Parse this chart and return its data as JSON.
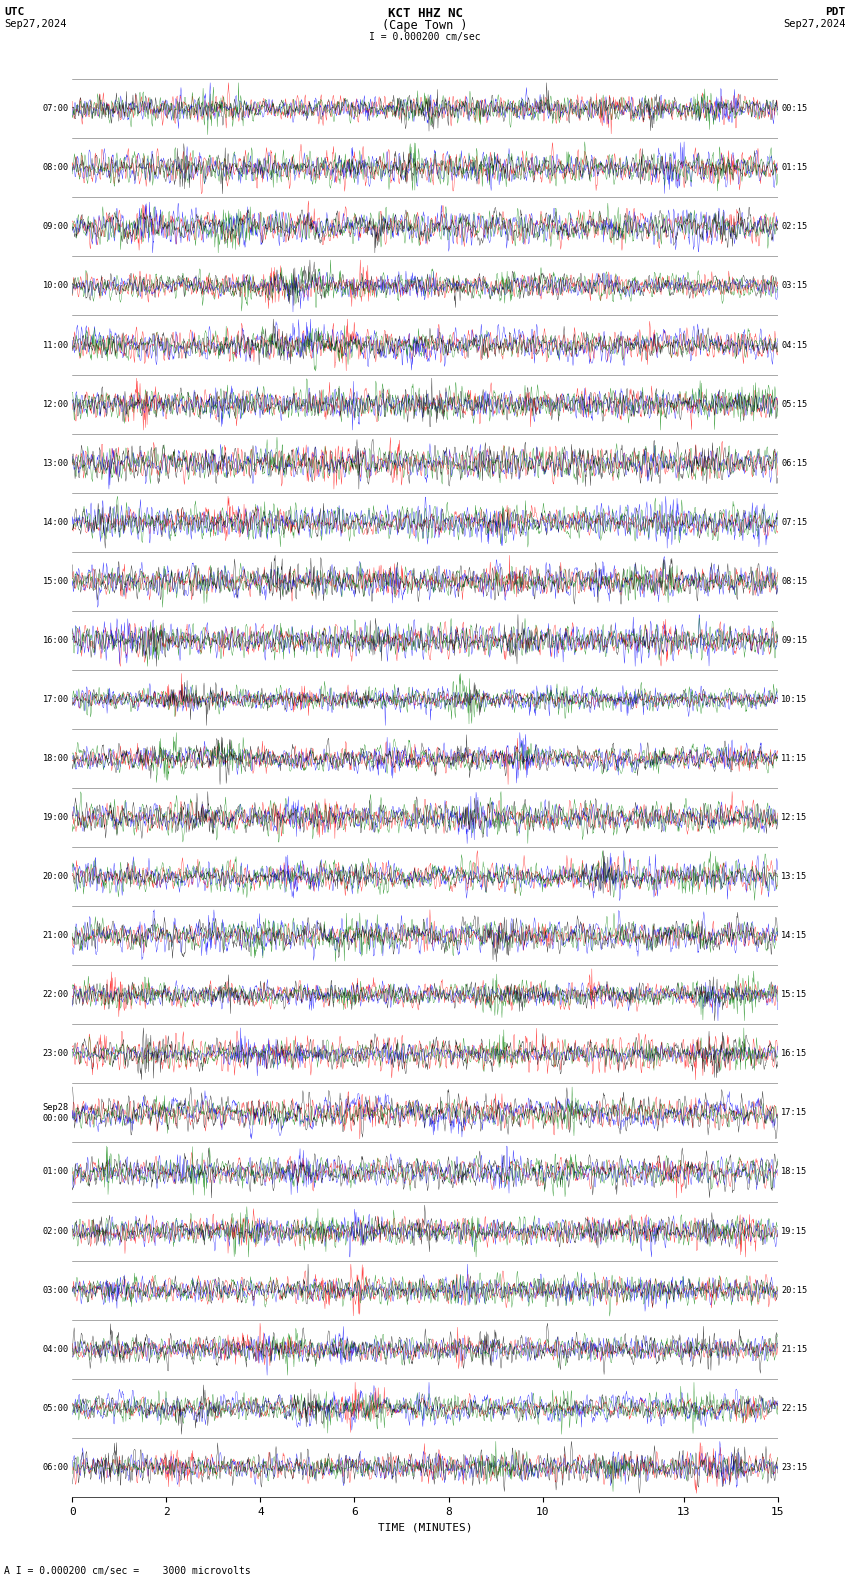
{
  "title_line1": "KCT HHZ NC",
  "title_line2": "(Cape Town )",
  "scale_label": "I = 0.000200 cm/sec",
  "utc_label": "UTC",
  "pdt_label": "PDT",
  "date_left": "Sep27,2024",
  "date_right": "Sep27,2024",
  "xlabel": "TIME (MINUTES)",
  "footer": "A I = 0.000200 cm/sec =    3000 microvolts",
  "left_time_labels": [
    "07:00",
    "08:00",
    "09:00",
    "10:00",
    "11:00",
    "12:00",
    "13:00",
    "14:00",
    "15:00",
    "16:00",
    "17:00",
    "18:00",
    "19:00",
    "20:00",
    "21:00",
    "22:00",
    "23:00",
    "Sep28\n00:00",
    "01:00",
    "02:00",
    "03:00",
    "04:00",
    "05:00",
    "06:00"
  ],
  "right_time_labels": [
    "00:15",
    "01:15",
    "02:15",
    "03:15",
    "04:15",
    "05:15",
    "06:15",
    "07:15",
    "08:15",
    "09:15",
    "10:15",
    "11:15",
    "12:15",
    "13:15",
    "14:15",
    "15:15",
    "16:15",
    "17:15",
    "18:15",
    "19:15",
    "20:15",
    "21:15",
    "22:15",
    "23:15"
  ],
  "n_rows": 24,
  "n_cols": 1500,
  "colors": [
    "red",
    "blue",
    "green",
    "black"
  ],
  "bg_color": "white",
  "fig_width": 8.5,
  "fig_height": 15.84,
  "dpi": 100,
  "x_ticks": [
    0,
    2,
    4,
    6,
    8,
    10,
    13,
    15
  ],
  "signal_amplitude": 0.44
}
